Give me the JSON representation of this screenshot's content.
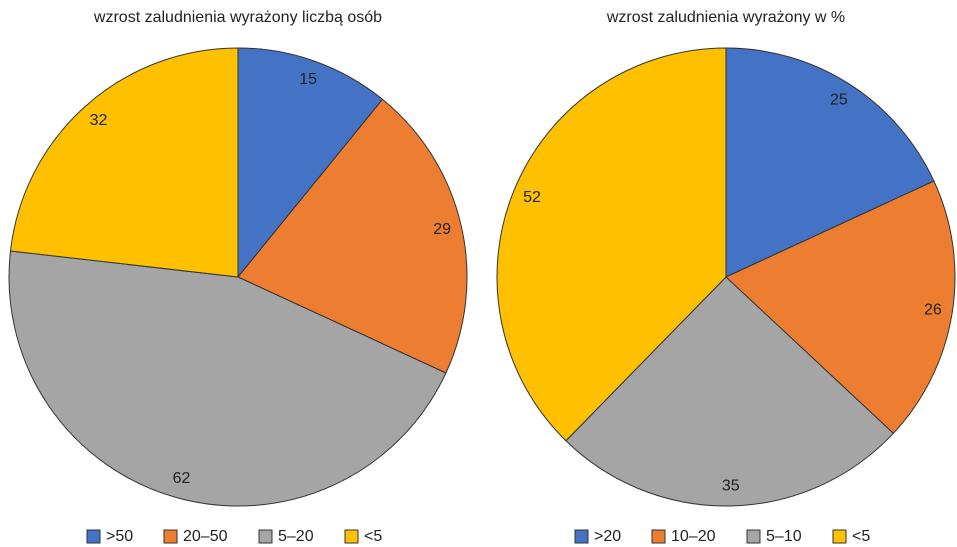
{
  "chart_data": [
    {
      "type": "pie",
      "title": "wzrost zaludnienia wyrażony liczbą osób",
      "categories": [
        ">50",
        "20–50",
        "5–20",
        "<5"
      ],
      "values": [
        15,
        29,
        62,
        32
      ],
      "colors": [
        "#4472c4",
        "#ed7d31",
        "#a5a5a5",
        "#ffc000"
      ],
      "legend": "bottom"
    },
    {
      "type": "pie",
      "title": "wzrost zaludnienia wyrażony w %",
      "categories": [
        ">20",
        "10–20",
        "5–10",
        "<5"
      ],
      "values": [
        25,
        26,
        35,
        52
      ],
      "colors": [
        "#4472c4",
        "#ed7d31",
        "#a5a5a5",
        "#ffc000"
      ],
      "legend": "bottom"
    }
  ]
}
